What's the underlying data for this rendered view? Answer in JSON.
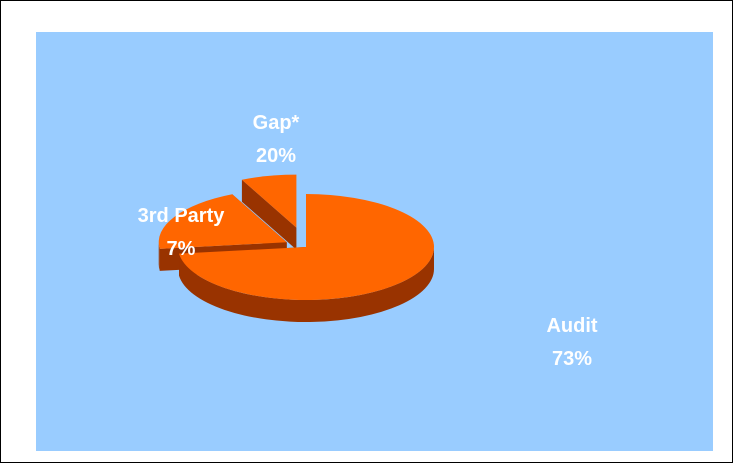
{
  "colors": {
    "plot_background": "#99ccff",
    "slice_top": "#ff6600",
    "slice_side": "#993300",
    "label_text": "#ffffff"
  },
  "chart_data": {
    "type": "pie",
    "style": "3d-exploded",
    "title": "",
    "slices": [
      {
        "label": "Audit",
        "value": 73,
        "display": "73%"
      },
      {
        "label": "Gap*",
        "value": 20,
        "display": "20%"
      },
      {
        "label": "3rd Party",
        "value": 7,
        "display": "7%"
      }
    ]
  }
}
